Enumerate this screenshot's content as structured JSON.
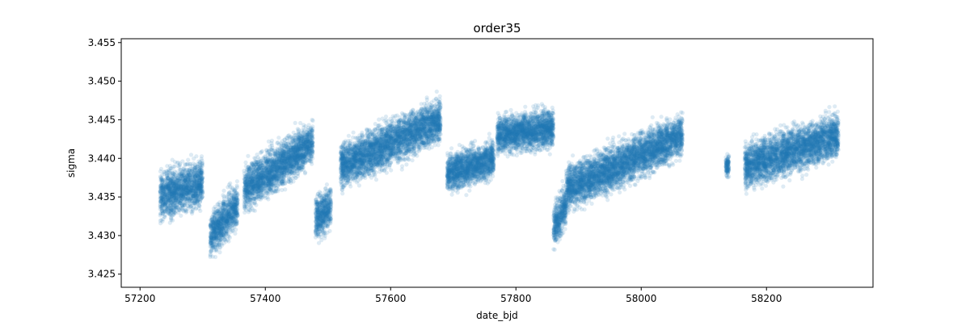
{
  "chart_data": {
    "type": "scatter",
    "title": "order35",
    "xlabel": "date_bjd",
    "ylabel": "sigma",
    "xlim": [
      57170,
      58370
    ],
    "ylim": [
      3.4233,
      3.4555
    ],
    "xticks": [
      57200,
      57400,
      57600,
      57800,
      58000,
      58200
    ],
    "xtick_labels": [
      "57200",
      "57400",
      "57600",
      "57800",
      "58000",
      "58200"
    ],
    "yticks": [
      3.425,
      3.43,
      3.435,
      3.44,
      3.445,
      3.45,
      3.455
    ],
    "ytick_labels": [
      "3.425",
      "3.430",
      "3.435",
      "3.440",
      "3.445",
      "3.450",
      "3.455"
    ],
    "grid": false,
    "marker_color": "#1f77b4",
    "marker_alpha": 0.15,
    "segments": [
      {
        "x": [
          57232,
          57300
        ],
        "y": [
          3.435,
          3.437
        ],
        "spread": 0.0032
      },
      {
        "x": [
          57312,
          57356
        ],
        "y": [
          3.43,
          3.434
        ],
        "spread": 0.003
      },
      {
        "x": [
          57366,
          57476
        ],
        "y": [
          3.436,
          3.442
        ],
        "spread": 0.003
      },
      {
        "x": [
          57480,
          57505
        ],
        "y": [
          3.432,
          3.434
        ],
        "spread": 0.003
      },
      {
        "x": [
          57520,
          57680
        ],
        "y": [
          3.439,
          3.445
        ],
        "spread": 0.003
      },
      {
        "x": [
          57690,
          57765
        ],
        "y": [
          3.438,
          3.44
        ],
        "spread": 0.0025
      },
      {
        "x": [
          57770,
          57860
        ],
        "y": [
          3.443,
          3.444
        ],
        "spread": 0.0025
      },
      {
        "x": [
          57860,
          57880
        ],
        "y": [
          3.431,
          3.434
        ],
        "spread": 0.003
      },
      {
        "x": [
          57880,
          58066
        ],
        "y": [
          3.436,
          3.443
        ],
        "spread": 0.003
      },
      {
        "x": [
          58135,
          58140
        ],
        "y": [
          3.439,
          3.439
        ],
        "spread": 0.0015
      },
      {
        "x": [
          58165,
          58315
        ],
        "y": [
          3.439,
          3.443
        ],
        "spread": 0.003
      }
    ]
  }
}
